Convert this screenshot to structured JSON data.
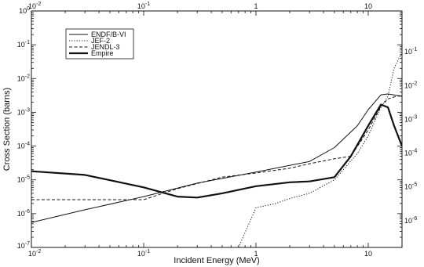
{
  "chart_data": {
    "type": "line",
    "title": "",
    "xlabel": "Incident Energy (MeV)",
    "ylabel": "Cross Section (barns)",
    "xscale": "log",
    "yscale": "log",
    "xlim": [
      0.01,
      20
    ],
    "ylim": [
      1e-07,
      1
    ],
    "grid": false,
    "legend_position": "top-left",
    "x_ticks": [
      {
        "value": 0.01,
        "base": "10",
        "exp": "-2"
      },
      {
        "value": 0.1,
        "base": "10",
        "exp": "-1"
      },
      {
        "value": 1,
        "base": "1",
        "exp": ""
      },
      {
        "value": 10,
        "base": "10",
        "exp": ""
      }
    ],
    "y_ticks": [
      {
        "value": 1,
        "base": "10",
        "exp": "0"
      },
      {
        "value": 0.1,
        "base": "10",
        "exp": "-1"
      },
      {
        "value": 0.01,
        "base": "10",
        "exp": "-2"
      },
      {
        "value": 0.001,
        "base": "10",
        "exp": "-3"
      },
      {
        "value": 0.0001,
        "base": "10",
        "exp": "-4"
      },
      {
        "value": 1e-05,
        "base": "10",
        "exp": "-5"
      },
      {
        "value": 1e-06,
        "base": "10",
        "exp": "-6"
      },
      {
        "value": 1e-07,
        "base": "10",
        "exp": "-7"
      }
    ],
    "series": [
      {
        "name": "ENDF/B-VI",
        "style": "solid",
        "x": [
          0.01,
          0.03,
          0.1,
          0.3,
          1,
          3,
          5,
          8,
          10,
          13,
          15,
          20
        ],
        "y": [
          5.5e-07,
          1.3e-06,
          3.2e-06,
          8e-06,
          1.7e-05,
          3.5e-05,
          9e-05,
          0.0004,
          0.0012,
          0.0033,
          0.0035,
          0.003
        ]
      },
      {
        "name": "JEF-2",
        "style": "dotted",
        "x": [
          0.7,
          1,
          1.5,
          2,
          3,
          5,
          8,
          10,
          13,
          15,
          17,
          20
        ],
        "y": [
          1e-07,
          1.5e-06,
          2e-06,
          2.8e-06,
          4e-06,
          1e-05,
          6e-05,
          0.0002,
          0.0014,
          0.003,
          0.02,
          0.06
        ]
      },
      {
        "name": "JENDL-3",
        "style": "dashed",
        "x": [
          0.01,
          0.1,
          0.2,
          0.5,
          1,
          2,
          3,
          5,
          7,
          10,
          13,
          15,
          18,
          20
        ],
        "y": [
          2.6e-06,
          2.6e-06,
          5.5e-06,
          1.2e-05,
          1.6e-05,
          2.2e-05,
          3e-05,
          4.2e-05,
          5e-05,
          0.0003,
          0.0015,
          0.0025,
          0.003,
          0.003
        ]
      },
      {
        "name": "Empire",
        "style": "bold",
        "x": [
          0.01,
          0.03,
          0.1,
          0.2,
          0.3,
          0.5,
          1,
          2,
          3,
          5,
          7,
          10,
          13,
          15,
          17,
          20
        ],
        "y": [
          1.8e-05,
          1.4e-05,
          6e-06,
          3.2e-06,
          3e-06,
          4e-06,
          6.5e-06,
          8.5e-06,
          9e-06,
          1.2e-05,
          5e-05,
          0.0004,
          0.0017,
          0.0014,
          0.0004,
          0.0001
        ]
      }
    ]
  }
}
